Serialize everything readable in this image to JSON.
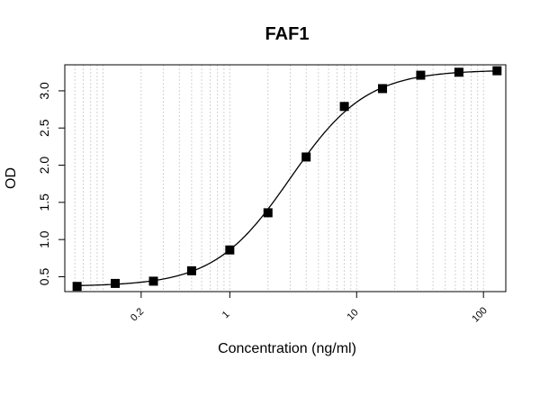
{
  "chart_data": {
    "type": "scatter",
    "title": "FAF1",
    "xlabel": "Concentration (ng/ml)",
    "ylabel": "OD",
    "x_scale": "log",
    "xlim": [
      0.05,
      150
    ],
    "ylim": [
      0.3,
      3.35
    ],
    "x_ticks": [
      0.2,
      1,
      10,
      100
    ],
    "x_tick_labels": [
      "0.2",
      "1",
      "10",
      "100"
    ],
    "y_ticks": [
      0.5,
      1.0,
      1.5,
      2.0,
      2.5,
      3.0
    ],
    "y_tick_labels": [
      "0.5",
      "1.0",
      "1.5",
      "2.0",
      "2.5",
      "3.0"
    ],
    "grid": "vertical dotted lines at log minor ticks",
    "series": [
      {
        "marker": "square",
        "color": "#000000",
        "x": [
          0.0625,
          0.125,
          0.25,
          0.5,
          1,
          2,
          4,
          8,
          16,
          32,
          64,
          128
        ],
        "y": [
          0.37,
          0.41,
          0.44,
          0.58,
          0.86,
          1.36,
          2.11,
          2.79,
          3.03,
          3.21,
          3.25,
          3.27
        ]
      }
    ],
    "fit_curve": {
      "type": "4PL",
      "bottom": 0.37,
      "top": 3.28,
      "ec50": 3.0,
      "hill": 1.45,
      "color": "#000000"
    }
  }
}
